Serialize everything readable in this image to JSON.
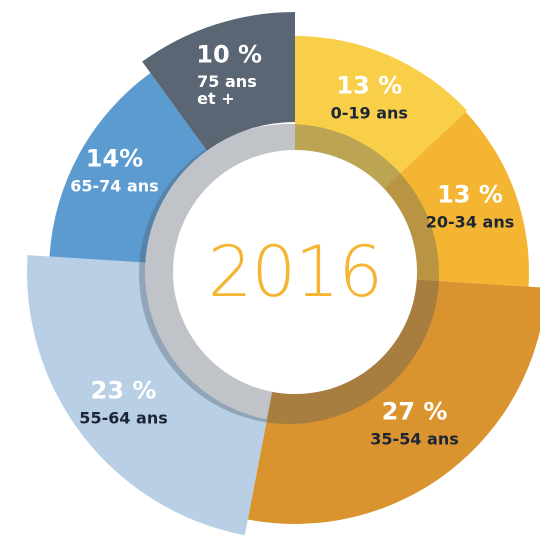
{
  "chart_data": {
    "type": "donut",
    "title": "2016",
    "categories": [
      "0-19 ans",
      "20-34 ans",
      "35-54 ans",
      "55-64 ans",
      "65-74 ans",
      "75 ans et +"
    ],
    "values": [
      13,
      13,
      27,
      23,
      14,
      10
    ],
    "value_labels": [
      "13 %",
      "13 %",
      "27 %",
      "23 %",
      "14%",
      "10 %"
    ],
    "colors": [
      "#f9cf4a",
      "#f4b632",
      "#d9932f",
      "#b8cfe6",
      "#5b9bd0",
      "#5a6673"
    ]
  }
}
